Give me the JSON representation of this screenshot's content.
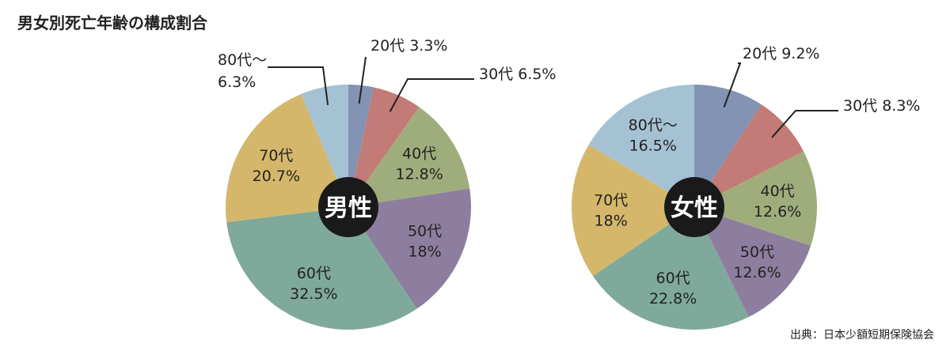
{
  "title": "男女別死亡年齢の構成割合",
  "source": "出典：日本少額短期保険協会",
  "chart_data": [
    {
      "type": "pie",
      "title": "男性",
      "categories": [
        "20代",
        "30代",
        "40代",
        "50代",
        "60代",
        "70代",
        "80代～"
      ],
      "values": [
        3.3,
        6.5,
        12.8,
        18,
        32.5,
        20.7,
        6.3
      ],
      "value_labels": [
        "3.3%",
        "6.5%",
        "12.8%",
        "18%",
        "32.5%",
        "20.7%",
        "6.3%"
      ],
      "colors": [
        "#8293b3",
        "#c27b76",
        "#9fad7c",
        "#8d7ea0",
        "#7fa99b",
        "#d4b76a",
        "#a5c2d4"
      ]
    },
    {
      "type": "pie",
      "title": "女性",
      "categories": [
        "20代",
        "30代",
        "40代",
        "50代",
        "60代",
        "70代",
        "80代～"
      ],
      "values": [
        9.2,
        8.3,
        12.6,
        12.6,
        22.8,
        18,
        16.5
      ],
      "value_labels": [
        "9.2%",
        "8.3%",
        "12.6%",
        "12.6%",
        "22.8%",
        "18%",
        "16.5%"
      ],
      "colors": [
        "#8293b3",
        "#c27b76",
        "#9fad7c",
        "#8d7ea0",
        "#7fa99b",
        "#d4b76a",
        "#a5c2d4"
      ]
    }
  ]
}
